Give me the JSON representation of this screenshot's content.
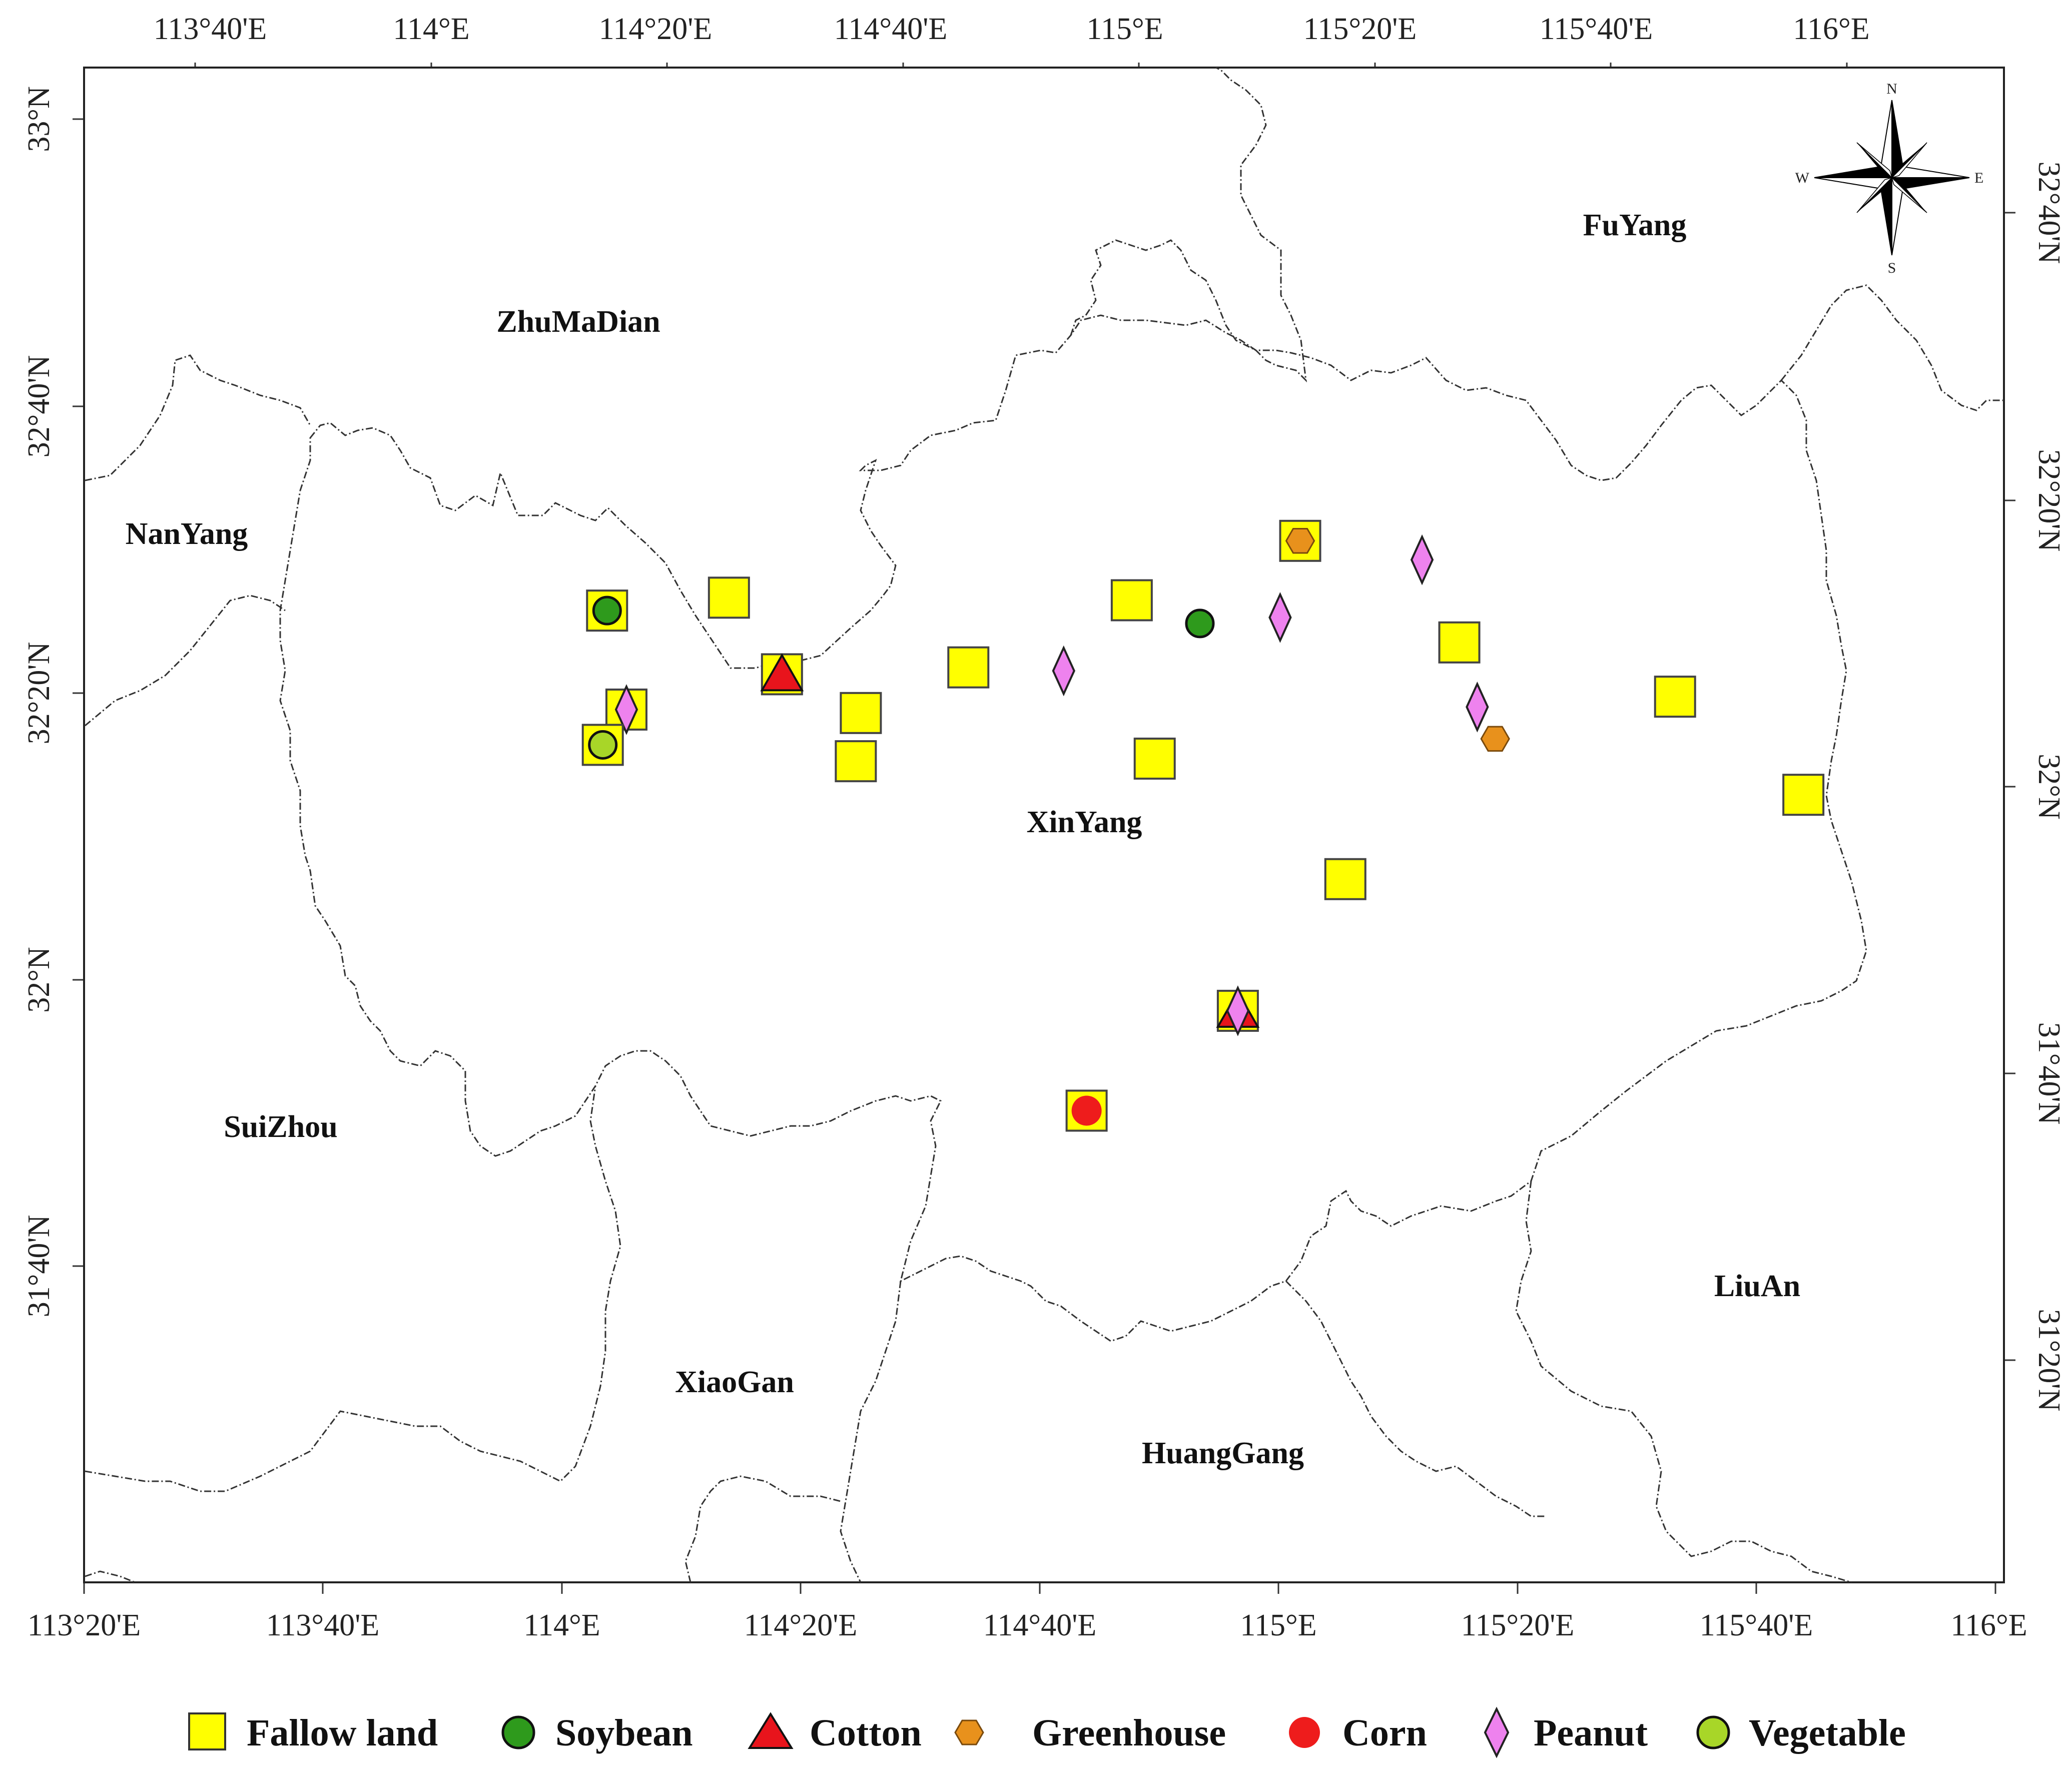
{
  "map": {
    "top_ticks": [
      "113°40'E",
      "114°E",
      "114°20'E",
      "114°40'E",
      "115°E",
      "115°20'E",
      "115°40'E",
      "116°E"
    ],
    "bottom_ticks": [
      "113°20'E",
      "113°40'E",
      "114°E",
      "114°20'E",
      "114°40'E",
      "115°E",
      "115°20'E",
      "115°40'E",
      "116°E"
    ],
    "left_ticks": [
      "33°N",
      "32°40'N",
      "32°20'N",
      "32°N",
      "31°40'N"
    ],
    "right_ticks": [
      "32°40'N",
      "32°20'N",
      "32°N",
      "31°40'N",
      "31°20'N"
    ],
    "regions": [
      {
        "name": "ZhuMaDian"
      },
      {
        "name": "FuYang"
      },
      {
        "name": "NanYang"
      },
      {
        "name": "XinYang"
      },
      {
        "name": "SuiZhou"
      },
      {
        "name": "LiuAn"
      },
      {
        "name": "XiaoGan"
      },
      {
        "name": "HuangGang"
      }
    ],
    "compass": {
      "n": "N",
      "s": "S",
      "e": "E",
      "w": "W"
    }
  },
  "legend": {
    "items": [
      {
        "type": "fallow",
        "label": "Fallow land",
        "color": "#ffff00",
        "icon": "square-icon"
      },
      {
        "type": "soybean",
        "label": "Soybean",
        "color": "#2e9a1c",
        "icon": "circle-icon"
      },
      {
        "type": "cotton",
        "label": "Cotton",
        "color": "#e8141c",
        "icon": "triangle-icon"
      },
      {
        "type": "greenhouse",
        "label": "Greenhouse",
        "color": "#e8911c",
        "icon": "hexagon-icon"
      },
      {
        "type": "corn",
        "label": "Corn",
        "color": "#ee1c1c",
        "icon": "circle-icon"
      },
      {
        "type": "peanut",
        "label": "Peanut",
        "color": "#ee82ee",
        "icon": "diamond-icon"
      },
      {
        "type": "vegetable",
        "label": "Vegetable",
        "color": "#a8d628",
        "icon": "circle-icon"
      }
    ]
  },
  "samples": [
    {
      "lon": 114.063,
      "lat": 32.429,
      "types": [
        "fallow",
        "soybean"
      ]
    },
    {
      "lon": 114.233,
      "lat": 32.444,
      "types": [
        "fallow"
      ]
    },
    {
      "lon": 114.307,
      "lat": 32.355,
      "types": [
        "fallow",
        "cotton"
      ]
    },
    {
      "lon": 114.09,
      "lat": 32.314,
      "types": [
        "fallow",
        "peanut"
      ]
    },
    {
      "lon": 114.057,
      "lat": 32.273,
      "types": [
        "fallow",
        "vegetable"
      ]
    },
    {
      "lon": 114.417,
      "lat": 32.31,
      "types": [
        "fallow"
      ]
    },
    {
      "lon": 114.41,
      "lat": 32.254,
      "types": [
        "fallow"
      ]
    },
    {
      "lon": 114.567,
      "lat": 32.363,
      "types": [
        "fallow"
      ]
    },
    {
      "lon": 114.795,
      "lat": 32.441,
      "types": [
        "fallow"
      ]
    },
    {
      "lon": 114.827,
      "lat": 32.257,
      "types": [
        "fallow"
      ]
    },
    {
      "lon": 114.7,
      "lat": 32.359,
      "types": [
        "peanut"
      ]
    },
    {
      "lon": 114.89,
      "lat": 32.414,
      "types": [
        "soybean"
      ]
    },
    {
      "lon": 115.002,
      "lat": 32.421,
      "types": [
        "peanut"
      ]
    },
    {
      "lon": 115.03,
      "lat": 32.51,
      "types": [
        "fallow",
        "greenhouse"
      ]
    },
    {
      "lon": 115.2,
      "lat": 32.488,
      "types": [
        "peanut"
      ]
    },
    {
      "lon": 115.252,
      "lat": 32.392,
      "types": [
        "fallow"
      ]
    },
    {
      "lon": 115.277,
      "lat": 32.317,
      "types": [
        "peanut"
      ]
    },
    {
      "lon": 115.302,
      "lat": 32.28,
      "types": [
        "greenhouse"
      ]
    },
    {
      "lon": 115.553,
      "lat": 32.329,
      "types": [
        "fallow"
      ]
    },
    {
      "lon": 115.732,
      "lat": 32.215,
      "types": [
        "fallow"
      ]
    },
    {
      "lon": 115.093,
      "lat": 32.117,
      "types": [
        "fallow"
      ]
    },
    {
      "lon": 114.943,
      "lat": 31.964,
      "types": [
        "fallow",
        "cotton",
        "peanut"
      ]
    },
    {
      "lon": 114.732,
      "lat": 31.848,
      "types": [
        "fallow",
        "corn"
      ]
    }
  ]
}
